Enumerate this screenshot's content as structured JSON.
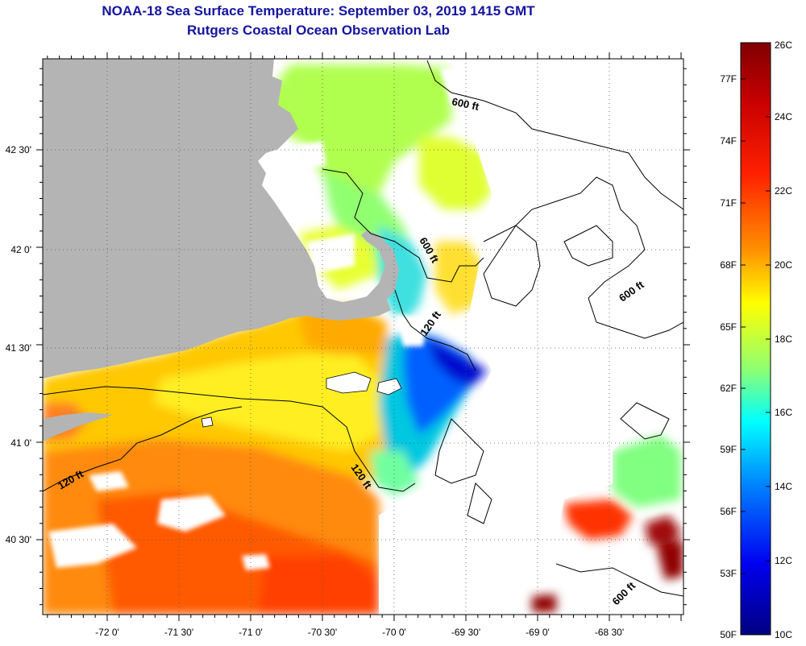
{
  "title": {
    "line1": "NOAA-18 Sea Surface Temperature:  September 03, 2019 1415 GMT",
    "line2": "Rutgers Coastal Ocean Observation Lab"
  },
  "map": {
    "longitude_labels": [
      "-72 0'",
      "-71 30'",
      "-71 0'",
      "-70 30'",
      "-70 0'",
      "-69 30'",
      "-69 0'",
      "-68 30'"
    ],
    "latitude_labels": [
      "42 30'",
      "42 0'",
      "41 30'",
      "41 0'",
      "40 30'"
    ],
    "depth_contour_labels": [
      "600 ft",
      "600 ft",
      "600 ft",
      "600 ft",
      "120 ft",
      "120 ft",
      "120 ft"
    ],
    "colors": {
      "land": "#b4b4b4",
      "no_data": "#ffffff",
      "contour": "#000000"
    }
  },
  "colorbar": {
    "fahrenheit_labels": [
      "77F",
      "74F",
      "71F",
      "68F",
      "65F",
      "62F",
      "59F",
      "56F",
      "53F",
      "50F"
    ],
    "celsius_labels": [
      "26C",
      "24C",
      "22C",
      "20C",
      "18C",
      "16C",
      "14C",
      "12C",
      "10C"
    ],
    "colors": [
      "#800000",
      "#ff0000",
      "#ff8000",
      "#ffff00",
      "#80ff80",
      "#00ffff",
      "#0080ff",
      "#0000ff",
      "#000080"
    ]
  }
}
